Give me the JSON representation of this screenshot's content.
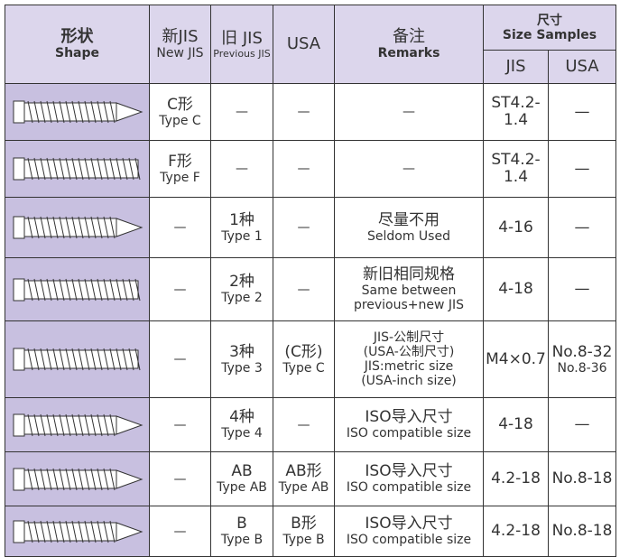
{
  "header": {
    "shape": [
      "形状",
      "Shape"
    ],
    "new_jis": [
      "新JIS",
      "New JIS"
    ],
    "old_jis": [
      "旧 JIS",
      "Previous JIS"
    ],
    "usa": "USA",
    "remarks": [
      "备注",
      "Remarks"
    ],
    "size": [
      "尺寸",
      "Size Samples"
    ],
    "size_jis": "JIS",
    "size_usa": "USA"
  },
  "rows": [
    {
      "new_jis": [
        "C形",
        "Type C"
      ],
      "old_jis": [
        "—"
      ],
      "usa": [
        "—"
      ],
      "remarks": [
        "—"
      ],
      "size_jis": [
        "ST4.2-1.4"
      ],
      "size_usa": [
        "—"
      ]
    },
    {
      "new_jis": [
        "F形",
        "Type F"
      ],
      "old_jis": [
        "—"
      ],
      "usa": [
        "—"
      ],
      "remarks": [
        "—"
      ],
      "size_jis": [
        "ST4.2-1.4"
      ],
      "size_usa": [
        "—"
      ]
    },
    {
      "new_jis": [
        "—"
      ],
      "old_jis": [
        "1种",
        "Type 1"
      ],
      "usa": [
        "—"
      ],
      "remarks": [
        "尽量不用",
        "Seldom Used"
      ],
      "size_jis": [
        "4-16"
      ],
      "size_usa": [
        "—"
      ]
    },
    {
      "new_jis": [
        "—"
      ],
      "old_jis": [
        "2种",
        "Type 2"
      ],
      "usa": [
        "—"
      ],
      "remarks": [
        "新旧相同规格",
        "Same between",
        "previous+new JIS"
      ],
      "size_jis": [
        "4-18"
      ],
      "size_usa": [
        "—"
      ]
    },
    {
      "new_jis": [
        "—"
      ],
      "old_jis": [
        "3种",
        "Type 3"
      ],
      "usa": [
        "(C形)",
        "Type C"
      ],
      "remarks": [
        "JIS-公制尺寸",
        "(USA-公制尺寸)",
        "JIS:metric size",
        "(USA-inch size)"
      ],
      "size_jis": [
        "M4×0.7"
      ],
      "size_usa": [
        "No.8-32",
        "No.8-36"
      ]
    },
    {
      "new_jis": [
        "—"
      ],
      "old_jis": [
        "4种",
        "Type 4"
      ],
      "usa": [
        "—"
      ],
      "remarks": [
        "ISO导入尺寸",
        "ISO compatible size"
      ],
      "size_jis": [
        "4-18"
      ],
      "size_usa": [
        "—"
      ]
    },
    {
      "new_jis": [
        "—"
      ],
      "old_jis": [
        "AB",
        "Type AB"
      ],
      "usa": [
        "AB形",
        "Type AB"
      ],
      "remarks": [
        "ISO导入尺寸",
        "ISO compatible size"
      ],
      "size_jis": [
        "4.2-18"
      ],
      "size_usa": [
        "No.8-18"
      ]
    },
    {
      "new_jis": [
        "—"
      ],
      "old_jis": [
        "B",
        "Type B"
      ],
      "usa": [
        "B形",
        "Type B"
      ],
      "remarks": [
        "ISO导入尺寸",
        "ISO compatible size"
      ],
      "size_jis": [
        "4.2-18"
      ],
      "size_usa": [
        "No.8-18"
      ]
    }
  ]
}
